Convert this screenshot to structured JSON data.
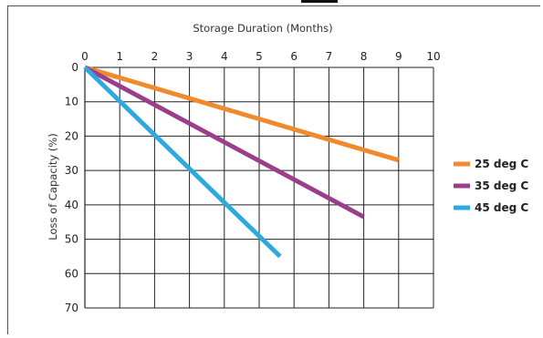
{
  "chart_data": {
    "type": "line",
    "xlabel": "Storage Duration (Months)",
    "ylabel": "Loss of Capacity (%)",
    "xlim": [
      0,
      10
    ],
    "ylim": [
      0,
      70
    ],
    "x_ticks": [
      "0",
      "1",
      "2",
      "3",
      "4",
      "5",
      "6",
      "7",
      "8",
      "9",
      "10"
    ],
    "y_ticks": [
      "0",
      "10",
      "20",
      "30",
      "40",
      "50",
      "60",
      "70"
    ],
    "x_axis_position": "top",
    "y_axis_inverted": true,
    "grid": true,
    "legend_position": "right",
    "series": [
      {
        "name": "25 deg C",
        "color": "#f08a2c",
        "points": [
          [
            0,
            0
          ],
          [
            9,
            27
          ]
        ]
      },
      {
        "name": "35 deg C",
        "color": "#9b3f8c",
        "points": [
          [
            0,
            0
          ],
          [
            8,
            43.5
          ]
        ]
      },
      {
        "name": "45 deg C",
        "color": "#2ea9e0",
        "points": [
          [
            0,
            0
          ],
          [
            5.6,
            55
          ]
        ]
      }
    ]
  }
}
